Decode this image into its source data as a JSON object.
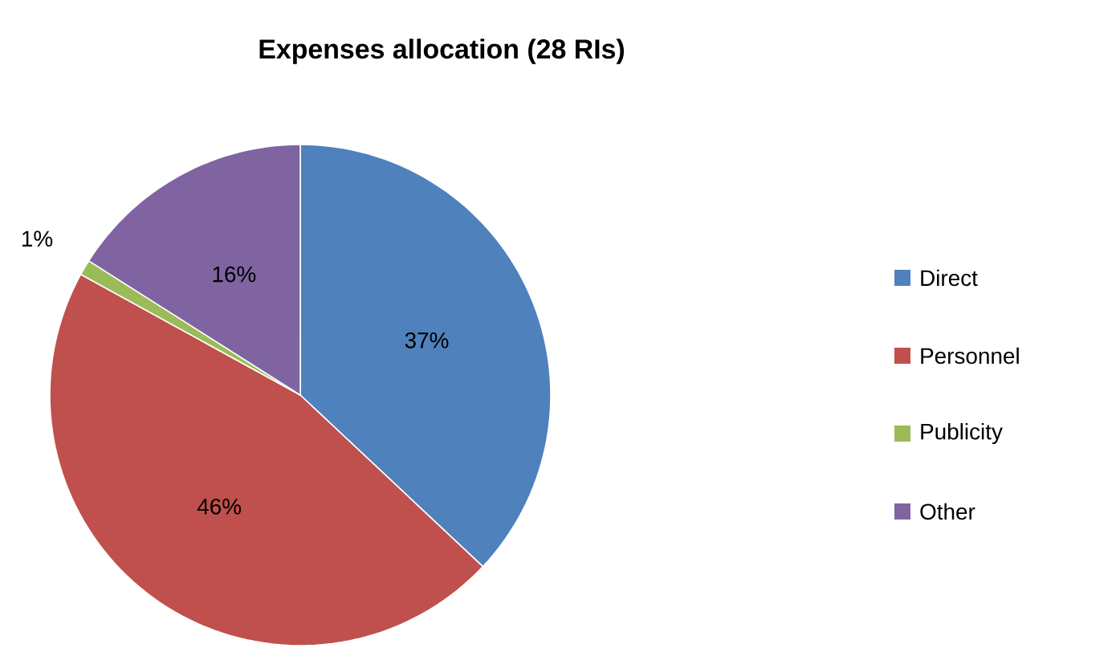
{
  "chart_data": {
    "type": "pie",
    "title": "Expenses allocation (28 RIs)",
    "categories": [
      "Direct",
      "Personnel",
      "Publicity",
      "Other"
    ],
    "values": [
      37,
      46,
      1,
      16
    ],
    "colors": [
      "#4f81bd",
      "#c0504d",
      "#9bbb59",
      "#8064a2"
    ],
    "value_labels": [
      "37%",
      "46%",
      "1%",
      "16%"
    ],
    "legend": "right"
  }
}
